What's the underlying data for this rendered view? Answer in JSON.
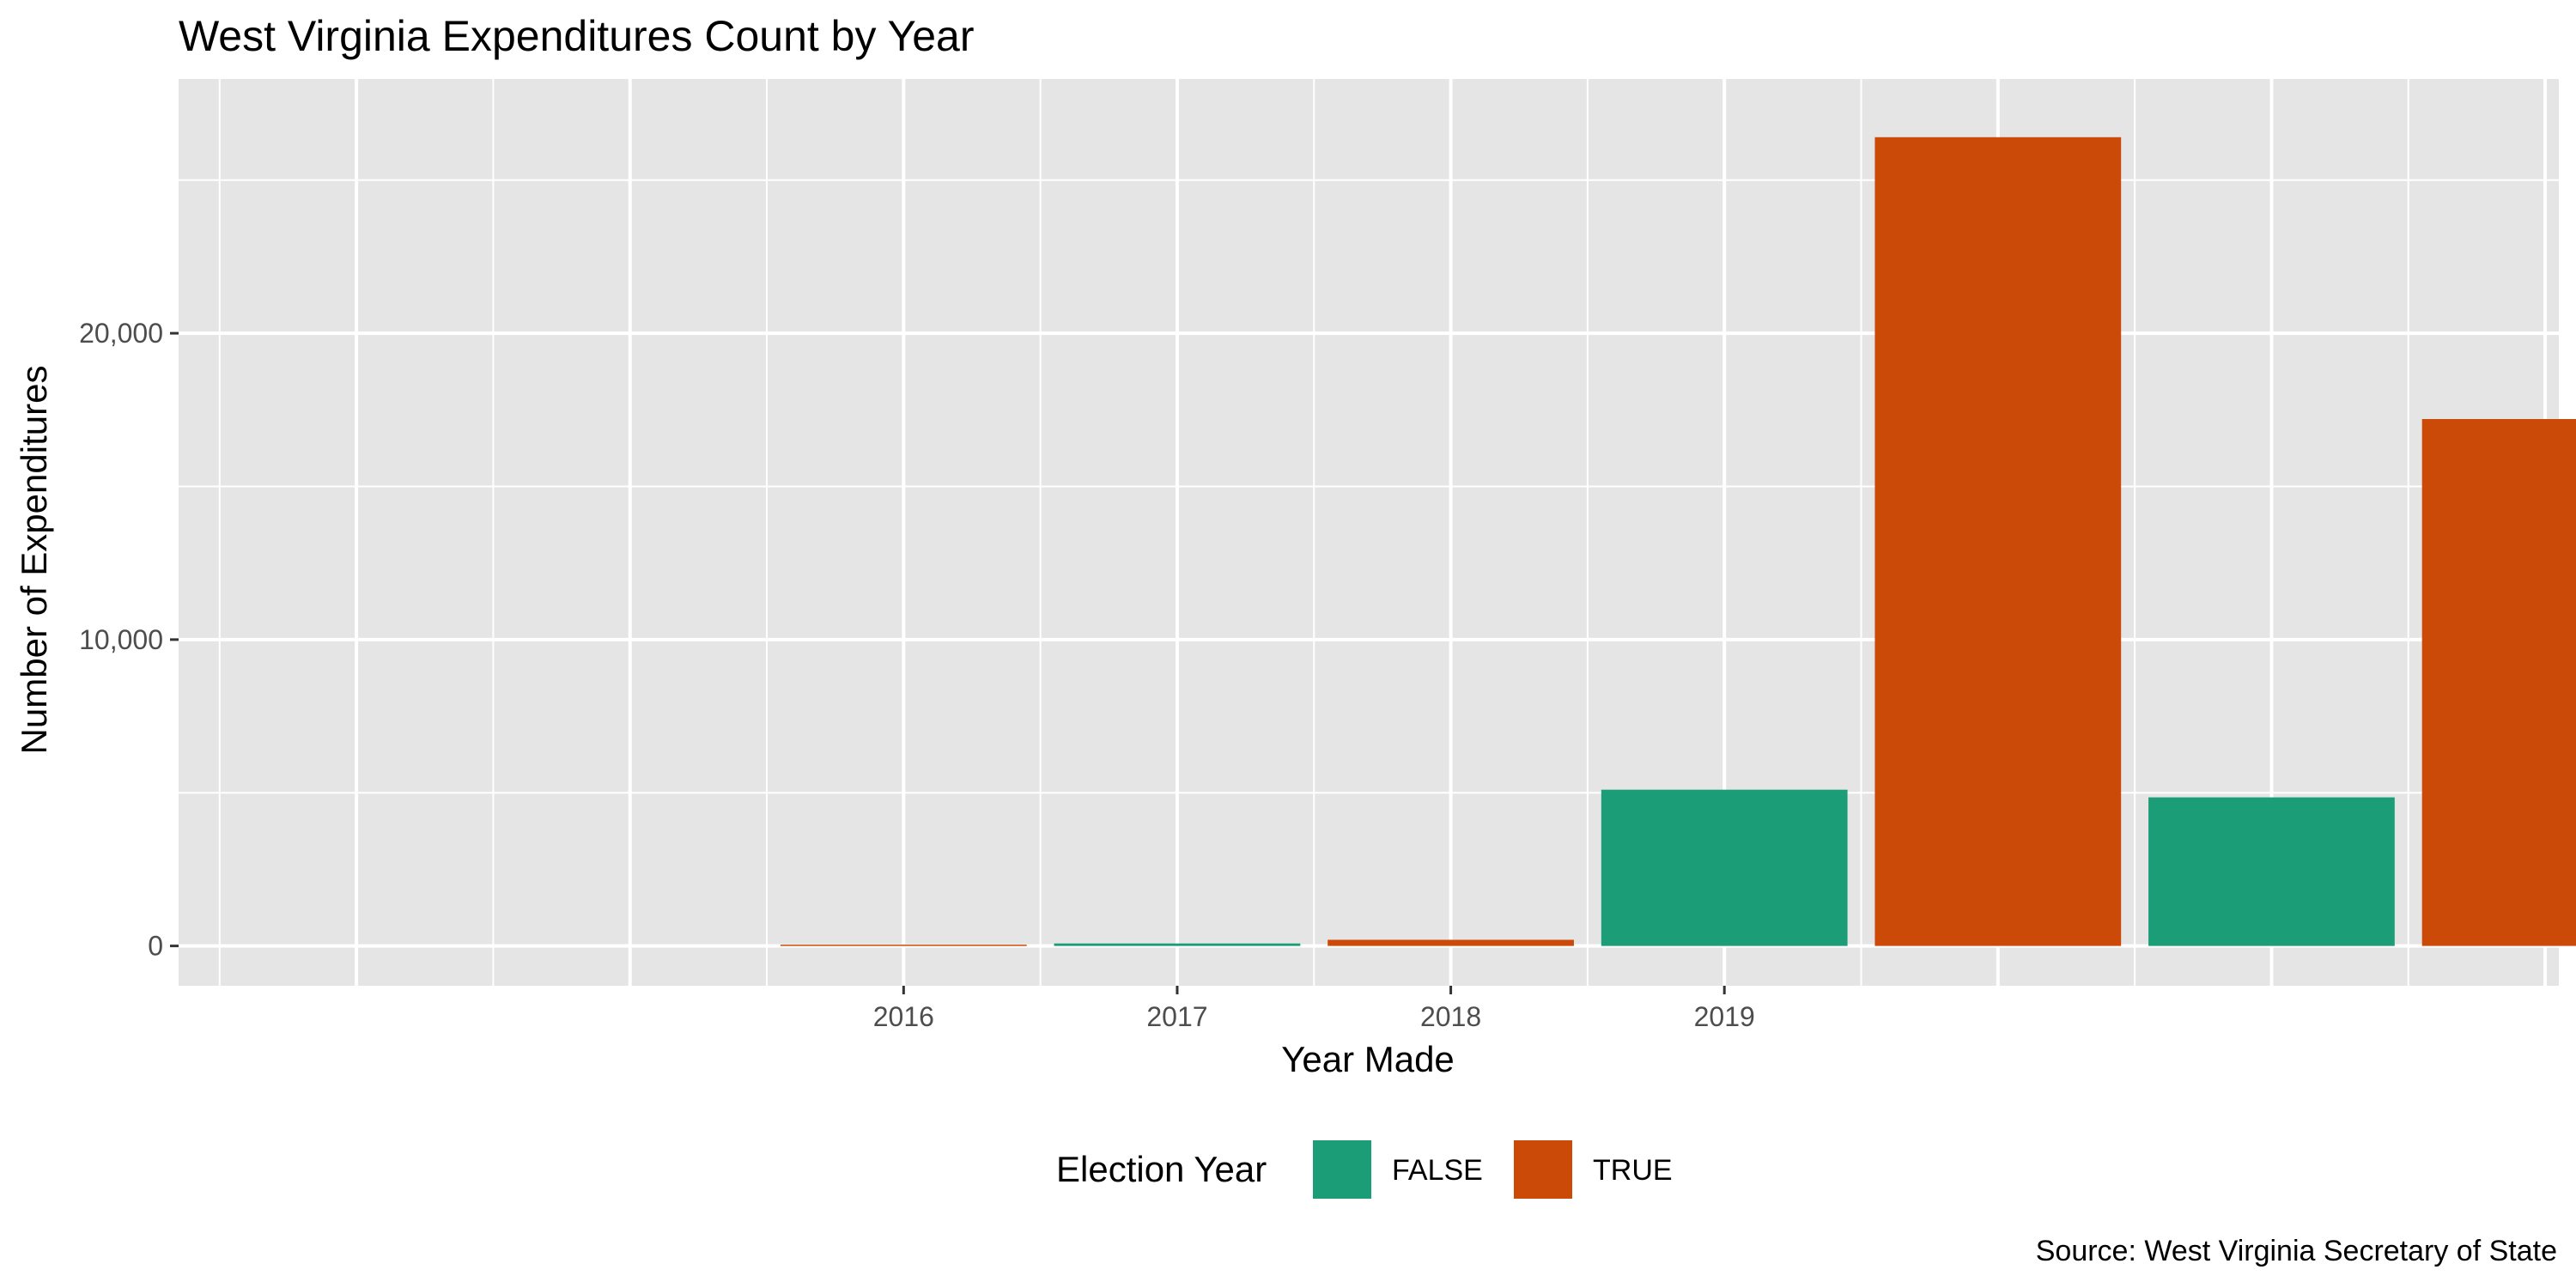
{
  "chart_data": {
    "type": "bar",
    "title": "West Virginia Expenditures Count by Year",
    "xlabel": "Year Made",
    "ylabel": "Number of Expenditures",
    "caption": "Source: West Virginia Secretary of State",
    "x_tick_labels": [
      "2016",
      "2017",
      "2018",
      "2019"
    ],
    "y_tick_labels": [
      "0",
      "10,000",
      "20,000"
    ],
    "y_ticks": [
      0,
      10000,
      20000
    ],
    "ylim": [
      -1300,
      28300
    ],
    "xlim": [
      2013.35,
      2022.05
    ],
    "grid": true,
    "legend": {
      "title": "Election Year",
      "position": "bottom",
      "entries": [
        {
          "label": "FALSE",
          "color": "#1b9e77"
        },
        {
          "label": "TRUE",
          "color": "#d95f02"
        }
      ]
    },
    "bars": [
      {
        "x": 2016,
        "value": 40,
        "election_year": "TRUE"
      },
      {
        "x": 2017,
        "value": 80,
        "election_year": "FALSE"
      },
      {
        "x": 2018,
        "value": 200,
        "election_year": "TRUE"
      },
      {
        "x": 2019,
        "value": 5100,
        "election_year": "FALSE"
      },
      {
        "x": 2020,
        "value": 26400,
        "election_year": "TRUE"
      },
      {
        "x": 2021,
        "value": 4850,
        "election_year": "FALSE"
      },
      {
        "x": 2022,
        "value": 17200,
        "election_year": "TRUE"
      }
    ],
    "colors": {
      "FALSE": "#1b9e77",
      "TRUE": "#cc4a08",
      "panel": "#e5e5e5",
      "grid": "#ffffff"
    }
  }
}
